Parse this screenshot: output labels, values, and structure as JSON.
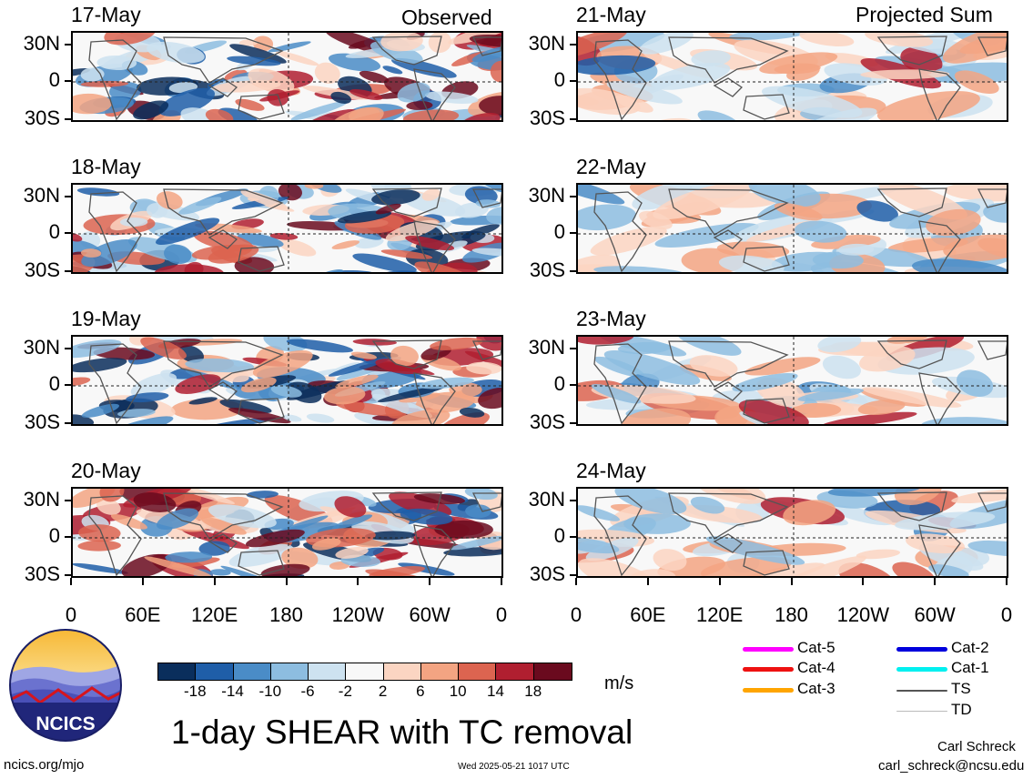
{
  "headers": {
    "left": "Observed",
    "right": "Projected Sum"
  },
  "panels_left": [
    {
      "date": "17-May"
    },
    {
      "date": "18-May"
    },
    {
      "date": "19-May"
    },
    {
      "date": "20-May"
    }
  ],
  "panels_right": [
    {
      "date": "21-May"
    },
    {
      "date": "22-May"
    },
    {
      "date": "23-May"
    },
    {
      "date": "24-May"
    }
  ],
  "lat_labels": [
    "30N",
    "0",
    "30S"
  ],
  "lon_labels": [
    "0",
    "60E",
    "120E",
    "180",
    "120W",
    "60W",
    "0"
  ],
  "colorbar": {
    "unit": "m/s",
    "ticks": [
      "-18",
      "-14",
      "-10",
      "-6",
      "-2",
      "2",
      "6",
      "10",
      "14",
      "18"
    ],
    "colors": [
      "#0a2e5c",
      "#1f5ea8",
      "#4a8cc7",
      "#8dbde0",
      "#cde2f0",
      "#f8f8f8",
      "#fbd5c2",
      "#f3a482",
      "#dc6450",
      "#b01f30",
      "#6a0a1e"
    ]
  },
  "title": "1-day SHEAR with TC removal",
  "logo": {
    "text": "NCICS"
  },
  "legend": [
    {
      "label": "Cat-5",
      "color": "#ff00ff"
    },
    {
      "label": "Cat-4",
      "color": "#ee1111"
    },
    {
      "label": "Cat-3",
      "color": "#ffa500"
    },
    {
      "label": "Cat-2",
      "color": "#0000dd"
    },
    {
      "label": "Cat-1",
      "color": "#00f0f0"
    },
    {
      "label": "TS",
      "color": "#555555"
    },
    {
      "label": "TD",
      "color": "#bbbbbb"
    }
  ],
  "footer": {
    "left": "ncics.org/mjo",
    "center": "Wed 2025-05-21 1017 UTC",
    "author": "Carl Schreck",
    "email": "carl_schreck@ncsu.edu"
  }
}
